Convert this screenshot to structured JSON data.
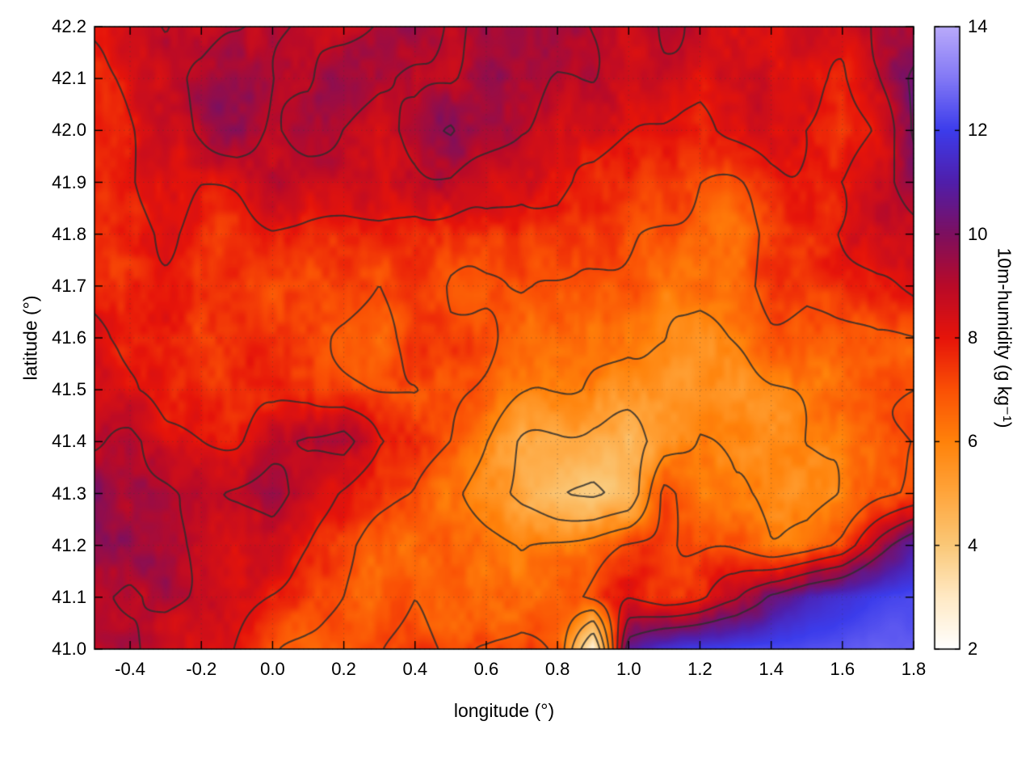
{
  "chart_data": {
    "type": "heatmap",
    "title": "",
    "xlabel": "longitude (°)",
    "ylabel": "latitude (°)",
    "colorbar_label": "10m-humidity (g kg⁻¹)",
    "x_range": [
      -0.5,
      1.8
    ],
    "y_range": [
      41.0,
      42.2
    ],
    "x_tick_values": [
      -0.4,
      -0.2,
      0.0,
      0.2,
      0.4,
      0.6,
      0.8,
      1.0,
      1.2,
      1.4,
      1.6,
      1.8
    ],
    "x_tick_labels": [
      "-0.4",
      "-0.2",
      "0.0",
      "0.2",
      "0.4",
      "0.6",
      "0.8",
      "1.0",
      "1.2",
      "1.4",
      "1.6",
      "1.8"
    ],
    "y_tick_values": [
      41.0,
      41.1,
      41.2,
      41.3,
      41.4,
      41.5,
      41.6,
      41.7,
      41.8,
      41.9,
      42.0,
      42.1,
      42.2
    ],
    "y_tick_labels": [
      "41.0",
      "41.1",
      "41.2",
      "41.3",
      "41.4",
      "41.5",
      "41.6",
      "41.7",
      "41.8",
      "41.9",
      "42.0",
      "42.1",
      "42.2"
    ],
    "colorbar_range": [
      2,
      14
    ],
    "colorbar_tick_values": [
      2,
      4,
      6,
      8,
      10,
      12,
      14
    ],
    "colorbar_tick_labels": [
      "2",
      "4",
      "6",
      "8",
      "10",
      "12",
      "14"
    ],
    "grid_on": true,
    "legend": "none",
    "contour_levels": [
      4,
      5,
      6,
      7,
      8,
      9,
      10
    ],
    "contour_color": "#2d2d2d",
    "colormap_stops": [
      {
        "value": 2,
        "color": "#ffffff"
      },
      {
        "value": 3,
        "color": "#ffe9c4"
      },
      {
        "value": 4,
        "color": "#fac878"
      },
      {
        "value": 5,
        "color": "#ffa53c"
      },
      {
        "value": 6,
        "color": "#ff820a"
      },
      {
        "value": 7,
        "color": "#fa5005"
      },
      {
        "value": 8,
        "color": "#e6140a"
      },
      {
        "value": 9,
        "color": "#b90a28"
      },
      {
        "value": 10,
        "color": "#7d0f5f"
      },
      {
        "value": 11,
        "color": "#501eaa"
      },
      {
        "value": 12,
        "color": "#3c3ceb"
      },
      {
        "value": 13,
        "color": "#8278f5"
      },
      {
        "value": 14,
        "color": "#b9aafa"
      }
    ],
    "field": {
      "units": "g kg⁻¹",
      "x_start": -0.5,
      "x_step": 0.1,
      "nx": 24,
      "y_start": 42.2,
      "y_step": -0.1,
      "ny": 13,
      "order": "rows from north (lat 42.2) to south (lat 41.0)",
      "values_rows_north_to_south": [
        [
          8.4,
          8.8,
          9.2,
          8.6,
          8.9,
          9.4,
          8.8,
          8.5,
          9.0,
          9.6,
          8.8,
          9.8,
          9.2,
          9.6,
          9.0,
          8.6,
          9.0,
          8.6,
          8.2,
          8.5,
          8.9,
          8.5,
          8.8,
          9.2
        ],
        [
          8.1,
          8.5,
          8.8,
          9.3,
          9.7,
          9.3,
          8.8,
          9.5,
          9.0,
          8.6,
          8.9,
          9.9,
          9.3,
          8.8,
          9.1,
          8.7,
          8.4,
          8.0,
          8.3,
          8.7,
          8.4,
          8.0,
          8.6,
          10.0
        ],
        [
          7.9,
          8.3,
          8.7,
          9.0,
          9.4,
          9.0,
          9.4,
          8.9,
          8.6,
          9.0,
          9.9,
          9.4,
          8.8,
          8.5,
          8.8,
          8.4,
          8.1,
          7.7,
          8.0,
          8.3,
          7.8,
          7.3,
          8.2,
          10.0
        ],
        [
          8.0,
          8.2,
          8.5,
          8.2,
          8.4,
          8.7,
          8.4,
          8.6,
          8.3,
          8.5,
          8.8,
          8.5,
          8.2,
          8.4,
          8.0,
          7.7,
          7.3,
          6.9,
          7.1,
          7.5,
          7.9,
          8.2,
          8.8,
          9.4
        ],
        [
          7.7,
          7.9,
          8.1,
          7.8,
          7.6,
          7.9,
          7.7,
          7.4,
          7.6,
          7.3,
          7.5,
          7.8,
          7.5,
          7.7,
          7.4,
          7.0,
          6.6,
          6.4,
          6.7,
          7.1,
          7.6,
          8.2,
          8.8,
          8.6
        ],
        [
          7.9,
          8.1,
          7.8,
          7.6,
          7.8,
          7.5,
          7.2,
          7.4,
          7.1,
          7.3,
          7.0,
          7.2,
          7.4,
          7.1,
          6.8,
          6.4,
          6.2,
          6.5,
          6.9,
          7.2,
          7.0,
          7.4,
          7.8,
          8.1
        ],
        [
          8.1,
          7.8,
          7.6,
          7.4,
          7.6,
          7.3,
          7.5,
          7.2,
          7.0,
          7.2,
          6.9,
          7.1,
          6.8,
          6.6,
          6.3,
          6.1,
          6.3,
          6.0,
          6.4,
          6.7,
          6.5,
          6.8,
          7.2,
          7.2
        ],
        [
          8.3,
          8.0,
          7.8,
          8.0,
          7.7,
          7.4,
          7.6,
          7.3,
          7.0,
          6.8,
          7.0,
          6.7,
          6.4,
          6.1,
          5.8,
          5.6,
          5.9,
          5.7,
          5.6,
          6.0,
          6.2,
          6.6,
          7.0,
          7.0
        ],
        [
          8.8,
          9.2,
          8.6,
          8.3,
          8.0,
          8.4,
          9.0,
          9.3,
          7.9,
          7.4,
          6.9,
          6.0,
          5.2,
          4.8,
          4.6,
          5.0,
          5.6,
          6.0,
          5.7,
          6.0,
          6.3,
          6.1,
          6.5,
          6.8
        ],
        [
          9.8,
          9.3,
          9.0,
          8.6,
          8.9,
          9.2,
          8.5,
          8.0,
          7.6,
          7.2,
          6.4,
          5.6,
          4.8,
          4.2,
          4.0,
          4.5,
          7.4,
          6.2,
          5.9,
          6.2,
          6.0,
          6.4,
          6.8,
          7.2
        ],
        [
          10.0,
          9.6,
          9.0,
          8.6,
          8.2,
          8.4,
          8.0,
          7.4,
          6.8,
          6.4,
          6.7,
          6.3,
          6.0,
          6.3,
          6.6,
          7.0,
          7.3,
          6.9,
          6.6,
          6.3,
          6.7,
          7.4,
          9.2,
          11.0
        ],
        [
          9.3,
          8.9,
          9.1,
          8.7,
          8.3,
          7.9,
          7.5,
          7.1,
          6.7,
          6.9,
          6.5,
          6.3,
          6.6,
          6.9,
          7.3,
          7.7,
          7.4,
          7.8,
          8.6,
          10.4,
          11.3,
          11.7,
          12.0,
          12.2
        ],
        [
          9.0,
          9.2,
          8.8,
          8.4,
          7.9,
          7.5,
          7.0,
          6.6,
          6.9,
          7.2,
          6.8,
          7.1,
          7.5,
          7.2,
          2.6,
          10.6,
          11.7,
          12.0,
          12.2,
          12.3,
          12.4,
          12.5,
          12.6,
          12.6
        ]
      ]
    }
  }
}
